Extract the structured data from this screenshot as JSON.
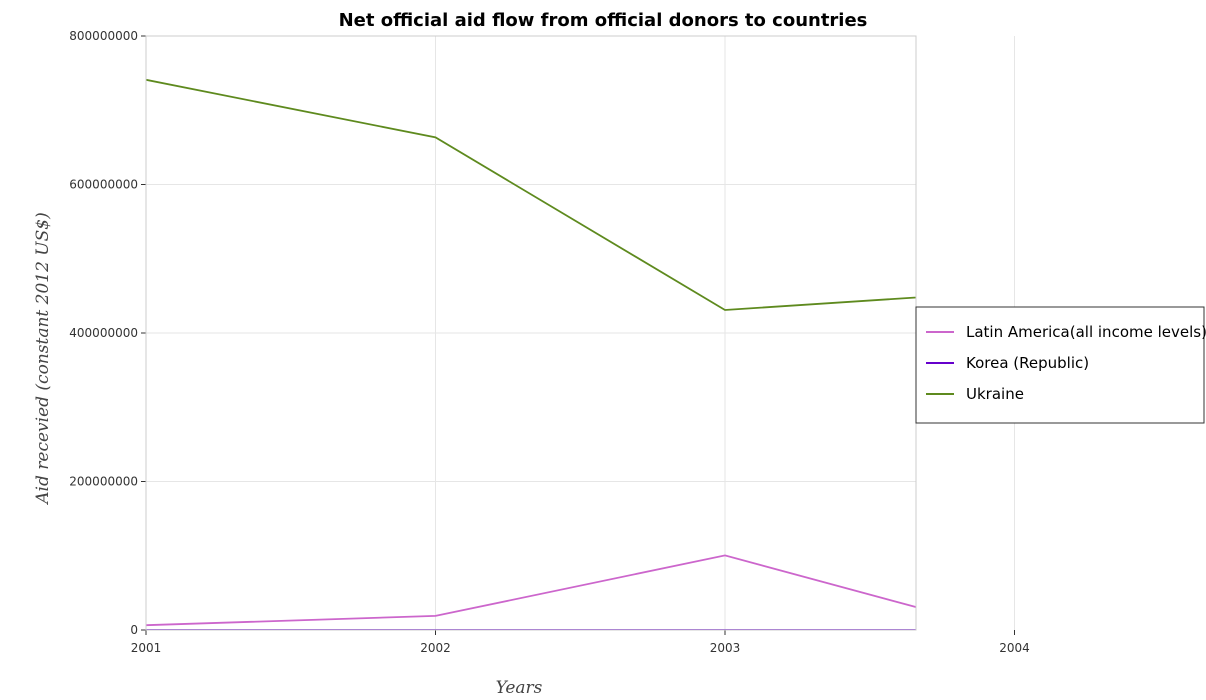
{
  "chart_data": {
    "type": "line",
    "title": "Net official aid flow from official donors to countries",
    "xlabel": "Years",
    "ylabel": "Aid recevied (constant 2012 US$)",
    "categories": [
      "2001",
      "2002",
      "2003",
      "2004"
    ],
    "ylim": [
      0,
      800000000
    ],
    "yticks": [
      0,
      200000000,
      400000000,
      600000000,
      800000000
    ],
    "ytick_labels": [
      "0",
      "200000000",
      "400000000",
      "600000000",
      "800000000"
    ],
    "grid": true,
    "legend_position": "right",
    "series": [
      {
        "name": "Latin America(all income levels)",
        "color": "#cc66cc",
        "values": [
          6500000,
          19000000,
          100500000,
          -5000000
        ]
      },
      {
        "name": "Korea (Republic)",
        "color": "#6600cc",
        "values": [
          0,
          0,
          0,
          0
        ]
      },
      {
        "name": "Ukraine",
        "color": "#5e8a1e",
        "values": [
          741000000,
          663500000,
          431000000,
          456500000
        ]
      }
    ]
  }
}
